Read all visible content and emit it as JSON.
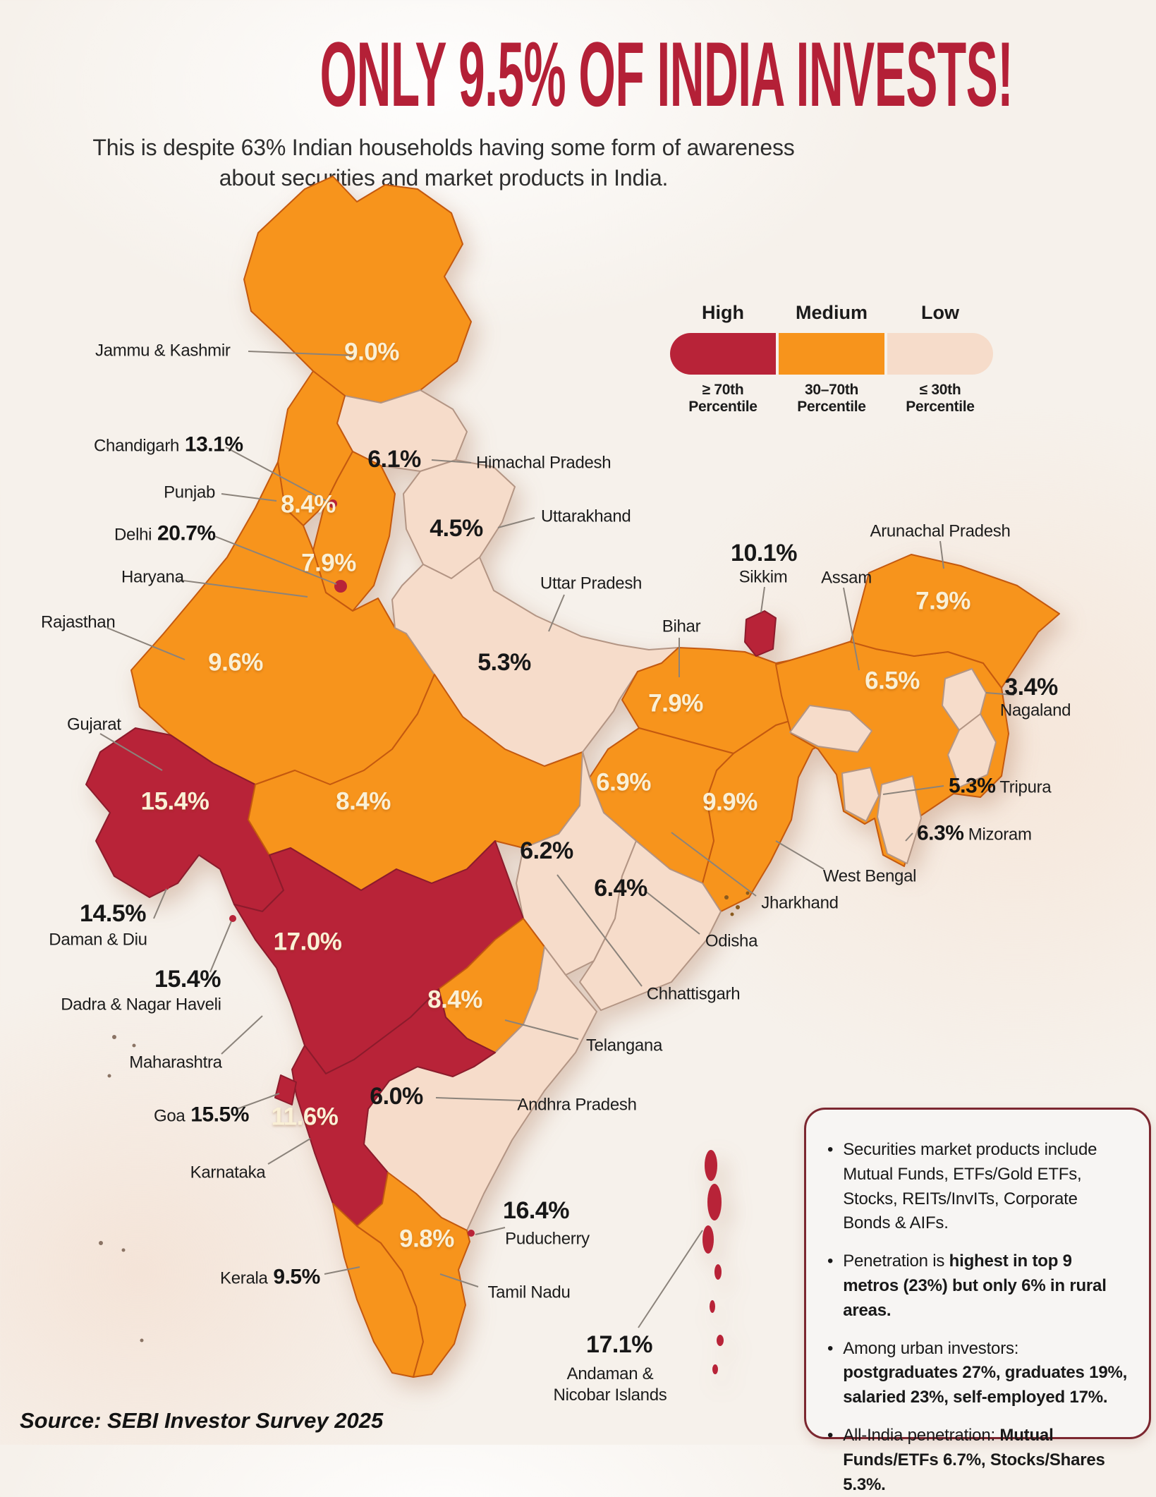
{
  "header": {
    "title": "ONLY 9.5% OF INDIA INVESTS!",
    "subtitle_line1": "This is despite 63% Indian households having some form of awareness",
    "subtitle_line2": "about securities and market products in India."
  },
  "legend": {
    "categories": [
      {
        "key": "high",
        "label": "High",
        "range": "≥ 70th Percentile"
      },
      {
        "key": "medium",
        "label": "Medium",
        "range": "30–70th Percentile"
      },
      {
        "key": "low",
        "label": "Low",
        "range": "≤ 30th Percentile"
      }
    ]
  },
  "palette": {
    "high": "#B82338",
    "medium": "#F7941C",
    "low": "#F6DCCA",
    "title": "#B42037",
    "value_light": "#FAF0D6",
    "value_dark": "#1A1A1A",
    "label_text": "#1C1C1C",
    "leader": "#8B837B",
    "background": "#F6F1EB",
    "note_border": "#7C2730",
    "note_bg": "#F7F5F3"
  },
  "map": {
    "states": [
      {
        "id": "jammu-kashmir",
        "name": "Jammu & Kashmir",
        "value": "9.0%",
        "category": "medium"
      },
      {
        "id": "himachal-pradesh",
        "name": "Himachal Pradesh",
        "value": "6.1%",
        "category": "low"
      },
      {
        "id": "punjab",
        "name": "Punjab",
        "value": "8.4%",
        "category": "medium"
      },
      {
        "id": "chandigarh",
        "name": "Chandigarh",
        "value": "13.1%",
        "category": "high"
      },
      {
        "id": "uttarakhand",
        "name": "Uttarakhand",
        "value": "4.5%",
        "category": "low"
      },
      {
        "id": "haryana",
        "name": "Haryana",
        "value": "7.9%",
        "category": "medium"
      },
      {
        "id": "delhi",
        "name": "Delhi",
        "value": "20.7%",
        "category": "high"
      },
      {
        "id": "rajasthan",
        "name": "Rajasthan",
        "value": "9.6%",
        "category": "medium"
      },
      {
        "id": "uttar-pradesh",
        "name": "Uttar Pradesh",
        "value": "5.3%",
        "category": "low"
      },
      {
        "id": "bihar",
        "name": "Bihar",
        "value": "7.9%",
        "category": "medium"
      },
      {
        "id": "sikkim",
        "name": "Sikkim",
        "value": "10.1%",
        "category": "high"
      },
      {
        "id": "arunachal-pradesh",
        "name": "Arunachal Pradesh",
        "value": "7.9%",
        "category": "medium"
      },
      {
        "id": "assam",
        "name": "Assam",
        "value": "6.5%",
        "category": "medium"
      },
      {
        "id": "nagaland",
        "name": "Nagaland",
        "value": "3.4%",
        "category": "low"
      },
      {
        "id": "manipur",
        "name": "",
        "value": "",
        "category": "low"
      },
      {
        "id": "meghalaya",
        "name": "",
        "value": "",
        "category": "low"
      },
      {
        "id": "tripura",
        "name": "Tripura",
        "value": "5.3%",
        "category": "low"
      },
      {
        "id": "mizoram",
        "name": "Mizoram",
        "value": "6.3%",
        "category": "low"
      },
      {
        "id": "west-bengal",
        "name": "West Bengal",
        "value": "9.9%",
        "category": "medium"
      },
      {
        "id": "jharkhand",
        "name": "Jharkhand",
        "value": "6.9%",
        "category": "medium"
      },
      {
        "id": "gujarat",
        "name": "Gujarat",
        "value": "15.4%",
        "category": "high"
      },
      {
        "id": "madhya-pradesh",
        "name": "",
        "value": "8.4%",
        "category": "medium"
      },
      {
        "id": "chhattisgarh",
        "name": "Chhattisgarh",
        "value": "6.2%",
        "category": "low"
      },
      {
        "id": "odisha",
        "name": "Odisha",
        "value": "6.4%",
        "category": "low"
      },
      {
        "id": "daman-diu",
        "name": "Daman & Diu",
        "value": "14.5%",
        "category": "high"
      },
      {
        "id": "dadra-nagar-haveli",
        "name": "Dadra & Nagar Haveli",
        "value": "15.4%",
        "category": "high"
      },
      {
        "id": "maharashtra",
        "name": "Maharashtra",
        "value": "17.0%",
        "category": "high"
      },
      {
        "id": "telangana",
        "name": "Telangana",
        "value": "8.4%",
        "category": "medium"
      },
      {
        "id": "andhra-pradesh",
        "name": "Andhra Pradesh",
        "value": "6.0%",
        "category": "low"
      },
      {
        "id": "goa",
        "name": "Goa",
        "value": "15.5%",
        "category": "high"
      },
      {
        "id": "karnataka",
        "name": "Karnataka",
        "value": "11.6%",
        "category": "high"
      },
      {
        "id": "kerala",
        "name": "Kerala",
        "value": "9.5%",
        "category": "medium"
      },
      {
        "id": "tamil-nadu",
        "name": "Tamil Nadu",
        "value": "9.8%",
        "category": "medium"
      },
      {
        "id": "puducherry",
        "name": "Puducherry",
        "value": "16.4%",
        "category": "high"
      },
      {
        "id": "andaman-nicobar",
        "name": "Andaman & Nicobar Islands",
        "value": "17.1%",
        "category": "high"
      },
      {
        "id": "lakshadweep",
        "name": "",
        "value": "",
        "category": "high"
      }
    ]
  },
  "notes": {
    "bullets": [
      {
        "runs": [
          {
            "text": "Securities market products include Mutual Funds, ETFs/Gold ETFs, Stocks, REITs/InvITs, Corporate Bonds & AIFs.",
            "bold": false
          }
        ]
      },
      {
        "runs": [
          {
            "text": "Penetration is ",
            "bold": false
          },
          {
            "text": "highest in top 9 metros (23%) but only 6% in rural areas.",
            "bold": true
          }
        ]
      },
      {
        "runs": [
          {
            "text": "Among urban investors: ",
            "bold": false
          },
          {
            "text": "postgraduates 27%, graduates 19%, salaried 23%, self-employed 17%.",
            "bold": true
          }
        ]
      },
      {
        "runs": [
          {
            "text": "All-India penetration: ",
            "bold": false
          },
          {
            "text": "Mutual Funds/ETFs 6.7%, Stocks/Shares 5.3%.",
            "bold": true
          }
        ]
      }
    ]
  },
  "source": "Source: SEBI Investor Survey 2025"
}
